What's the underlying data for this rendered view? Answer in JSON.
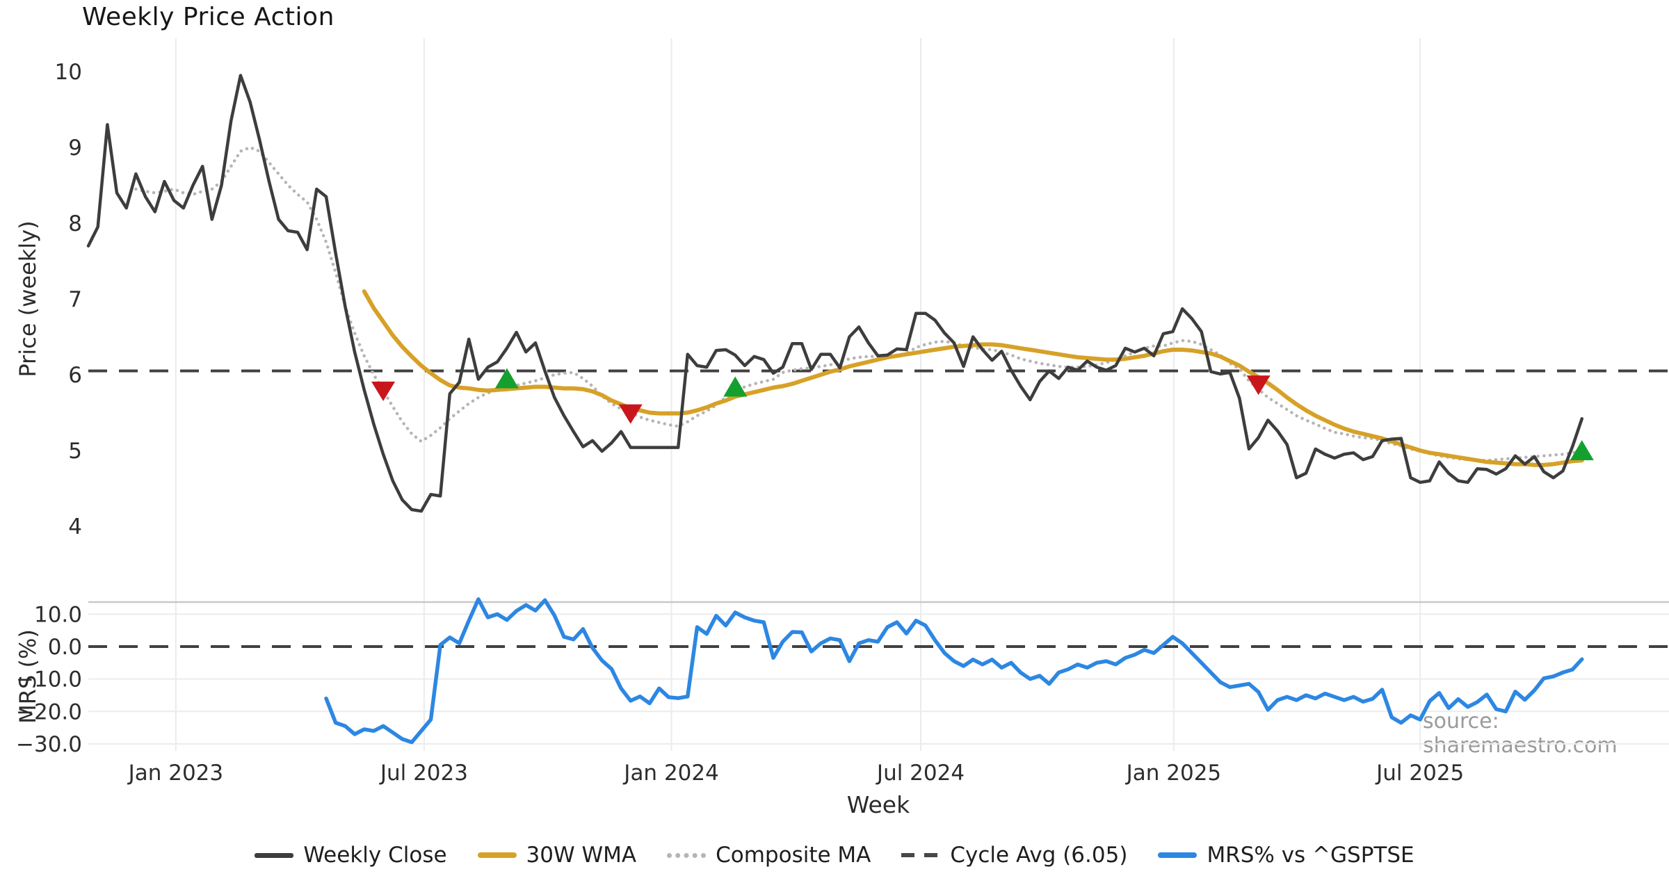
{
  "title": "Weekly Price Action",
  "source_note": "source: sharemaestro.com",
  "colors": {
    "close": "#3d3d3d",
    "wma": "#d7a128",
    "composite": "#b5b5b5",
    "dashed": "#404040",
    "mrs": "#2d87e2",
    "sell": "#c9161d",
    "buy": "#14a02e",
    "grid": "#e9ebef",
    "mrs_grid": "#ececec",
    "mrs_spine": "#c8c8c8",
    "tick_text": "#2d2d2d"
  },
  "chart_data": {
    "type": "line",
    "xlabel": "Week",
    "x_tick_labels": [
      "Jan 2023",
      "Jul 2023",
      "Jan 2024",
      "Jul 2024",
      "Jan 2025",
      "Jul 2025"
    ],
    "x_tick_weeks": [
      9.2,
      35.3,
      61.3,
      87.5,
      114.1,
      140.0
    ],
    "weeks_total": 158,
    "panels": [
      {
        "name": "price",
        "ylabel": "Price (weekly)",
        "yticks": [
          10,
          9,
          8,
          7,
          6,
          5,
          4
        ],
        "ytick_labels": [
          "10",
          "9",
          "8",
          "7",
          "6",
          "5",
          "4"
        ],
        "ylim": [
          3.85,
          10.45
        ]
      },
      {
        "name": "mrs",
        "ylabel": "MRS (%)",
        "yticks": [
          10,
          0,
          -10,
          -20,
          -30
        ],
        "ytick_labels": [
          "10.0",
          "0.0",
          "−10.0",
          "−20.0",
          "−30.0"
        ],
        "ylim": [
          -32,
          15.5
        ]
      }
    ],
    "legend": [
      "Weekly Close",
      "30W WMA",
      "Composite MA",
      "Cycle Avg (6.05)",
      "MRS% vs ^GSPTSE"
    ],
    "cycle_avg": 6.05,
    "series": [
      {
        "name": "Weekly Close",
        "panel": "price",
        "style": "solid",
        "color": "#3d3d3d",
        "width": 4.5,
        "start_week": 0,
        "values": [
          7.7,
          7.95,
          9.3,
          8.4,
          8.2,
          8.65,
          8.35,
          8.15,
          8.55,
          8.3,
          8.2,
          8.5,
          8.75,
          8.05,
          8.5,
          9.35,
          9.95,
          9.6,
          9.1,
          8.55,
          8.05,
          7.9,
          7.88,
          7.65,
          8.45,
          8.35,
          7.6,
          6.9,
          6.3,
          5.8,
          5.35,
          4.95,
          4.6,
          4.35,
          4.22,
          4.2,
          4.42,
          4.4,
          5.75,
          5.9,
          6.47,
          5.94,
          6.1,
          6.17,
          6.35,
          6.56,
          6.3,
          6.42,
          6.05,
          5.7,
          5.46,
          5.25,
          5.05,
          5.13,
          4.99,
          5.1,
          5.25,
          5.04,
          5.04,
          5.04,
          5.04,
          5.04,
          5.04,
          6.27,
          6.12,
          6.1,
          6.32,
          6.33,
          6.26,
          6.12,
          6.24,
          6.2,
          6.02,
          6.1,
          6.41,
          6.41,
          6.07,
          6.27,
          6.27,
          6.09,
          6.5,
          6.63,
          6.42,
          6.25,
          6.26,
          6.34,
          6.33,
          6.81,
          6.81,
          6.72,
          6.55,
          6.42,
          6.11,
          6.5,
          6.33,
          6.19,
          6.31,
          6.06,
          5.85,
          5.67,
          5.91,
          6.05,
          5.95,
          6.1,
          6.06,
          6.18,
          6.1,
          6.06,
          6.12,
          6.35,
          6.3,
          6.35,
          6.25,
          6.54,
          6.57,
          6.87,
          6.74,
          6.57,
          6.04,
          6.01,
          6.03,
          5.69,
          5.02,
          5.17,
          5.4,
          5.26,
          5.08,
          4.64,
          4.7,
          5.02,
          4.95,
          4.9,
          4.95,
          4.97,
          4.88,
          4.92,
          5.13,
          5.15,
          5.16,
          4.64,
          4.58,
          4.6,
          4.85,
          4.7,
          4.6,
          4.58,
          4.76,
          4.75,
          4.69,
          4.76,
          4.93,
          4.82,
          4.92,
          4.72,
          4.64,
          4.73,
          5.05,
          5.42
        ]
      },
      {
        "name": "30W WMA",
        "panel": "price",
        "style": "solid",
        "color": "#d7a128",
        "width": 6,
        "start_week": 29,
        "values": [
          7.1,
          6.88,
          6.7,
          6.52,
          6.37,
          6.24,
          6.12,
          6.02,
          5.93,
          5.86,
          5.83,
          5.82,
          5.8,
          5.79,
          5.8,
          5.81,
          5.82,
          5.83,
          5.84,
          5.84,
          5.83,
          5.82,
          5.82,
          5.81,
          5.78,
          5.73,
          5.66,
          5.61,
          5.56,
          5.53,
          5.5,
          5.49,
          5.49,
          5.49,
          5.5,
          5.53,
          5.57,
          5.62,
          5.66,
          5.71,
          5.74,
          5.77,
          5.8,
          5.83,
          5.85,
          5.88,
          5.92,
          5.96,
          6.0,
          6.04,
          6.07,
          6.11,
          6.14,
          6.17,
          6.2,
          6.23,
          6.25,
          6.27,
          6.29,
          6.31,
          6.33,
          6.35,
          6.37,
          6.38,
          6.39,
          6.4,
          6.4,
          6.39,
          6.37,
          6.35,
          6.33,
          6.31,
          6.29,
          6.27,
          6.25,
          6.23,
          6.22,
          6.21,
          6.2,
          6.2,
          6.21,
          6.23,
          6.25,
          6.28,
          6.31,
          6.33,
          6.33,
          6.32,
          6.3,
          6.28,
          6.24,
          6.18,
          6.12,
          6.04,
          5.97,
          5.89,
          5.8,
          5.7,
          5.61,
          5.53,
          5.46,
          5.4,
          5.34,
          5.29,
          5.25,
          5.22,
          5.19,
          5.16,
          5.12,
          5.08,
          5.04,
          5.0,
          4.97,
          4.95,
          4.93,
          4.91,
          4.89,
          4.87,
          4.85,
          4.84,
          4.83,
          4.82,
          4.82,
          4.81,
          4.81,
          4.82,
          4.84,
          4.86,
          4.87
        ]
      },
      {
        "name": "Composite MA",
        "panel": "price",
        "style": "dotted",
        "color": "#b5b5b5",
        "width": 4.5,
        "start_week": 5,
        "values": [
          8.45,
          8.42,
          8.4,
          8.42,
          8.45,
          8.4,
          8.38,
          8.42,
          8.45,
          8.55,
          8.75,
          8.95,
          9.0,
          8.95,
          8.8,
          8.65,
          8.5,
          8.38,
          8.28,
          8.05,
          7.75,
          7.35,
          6.9,
          6.55,
          6.25,
          6.0,
          5.79,
          5.58,
          5.38,
          5.22,
          5.12,
          5.2,
          5.3,
          5.42,
          5.52,
          5.62,
          5.7,
          5.76,
          5.8,
          5.83,
          5.86,
          5.89,
          5.92,
          5.96,
          6.0,
          6.02,
          6.03,
          5.95,
          5.85,
          5.72,
          5.62,
          5.55,
          5.5,
          5.44,
          5.4,
          5.37,
          5.34,
          5.32,
          5.38,
          5.46,
          5.52,
          5.6,
          5.7,
          5.78,
          5.84,
          5.88,
          5.91,
          5.94,
          6.03,
          6.06,
          6.08,
          6.09,
          6.11,
          6.13,
          6.17,
          6.21,
          6.23,
          6.24,
          6.24,
          6.24,
          6.26,
          6.28,
          6.36,
          6.4,
          6.43,
          6.44,
          6.42,
          6.38,
          6.36,
          6.34,
          6.33,
          6.3,
          6.26,
          6.21,
          6.18,
          6.15,
          6.13,
          6.11,
          6.1,
          6.1,
          6.11,
          6.13,
          6.16,
          6.2,
          6.25,
          6.3,
          6.35,
          6.38,
          6.38,
          6.42,
          6.45,
          6.44,
          6.4,
          6.33,
          6.26,
          6.15,
          6.08,
          5.92,
          5.81,
          5.7,
          5.62,
          5.54,
          5.46,
          5.4,
          5.35,
          5.29,
          5.24,
          5.22,
          5.19,
          5.17,
          5.16,
          5.13,
          5.09,
          5.06,
          5.02,
          4.99,
          4.96,
          4.93,
          4.91,
          4.89,
          4.88,
          4.87,
          4.87,
          4.88,
          4.89,
          4.9,
          4.91,
          4.92,
          4.93,
          4.94,
          4.95,
          4.97,
          5.0
        ]
      },
      {
        "name": "MRS% vs ^GSPTSE",
        "panel": "mrs",
        "style": "solid",
        "color": "#2d87e2",
        "width": 5.5,
        "start_week": 25,
        "values": [
          -16,
          -23.5,
          -24.5,
          -27,
          -25.5,
          -26,
          -24.5,
          -26.5,
          -28.5,
          -29.5,
          -26,
          -22.5,
          0.5,
          2.8,
          1.0,
          8.0,
          14.6,
          9.0,
          10.0,
          8.2,
          11.0,
          12.8,
          11.1,
          14.3,
          9.6,
          3.0,
          2.2,
          5.4,
          -0.4,
          -4.3,
          -6.9,
          -12.9,
          -16.7,
          -15.4,
          -17.5,
          -12.9,
          -15.6,
          -15.9,
          -15.4,
          6.0,
          3.9,
          9.5,
          6.5,
          10.5,
          9.0,
          8.0,
          7.5,
          -3.5,
          1.5,
          4.5,
          4.4,
          -1.5,
          1.0,
          2.5,
          2.0,
          -4.5,
          1.0,
          2.0,
          1.5,
          6.0,
          7.5,
          4.0,
          8.0,
          6.5,
          2.0,
          -2.0,
          -4.5,
          -6.0,
          -4.0,
          -5.5,
          -4.0,
          -6.5,
          -5.0,
          -8.0,
          -10.0,
          -9.0,
          -11.5,
          -8.0,
          -7.0,
          -5.5,
          -6.5,
          -5.0,
          -4.5,
          -5.5,
          -3.5,
          -2.5,
          -1.0,
          -2.0,
          0.5,
          3.0,
          1.0,
          -2.0,
          -5.0,
          -8.0,
          -11.0,
          -12.5,
          -12.0,
          -11.5,
          -14.0,
          -19.5,
          -16.5,
          -15.5,
          -16.5,
          -15.0,
          -16.0,
          -14.5,
          -15.5,
          -16.5,
          -15.5,
          -17.0,
          -16.1,
          -13.3,
          -21.8,
          -23.5,
          -21.2,
          -22.5,
          -16.8,
          -14.3,
          -19.0,
          -16.2,
          -18.6,
          -17.1,
          -14.8,
          -19.3,
          -20.0,
          -13.9,
          -16.4,
          -13.5,
          -9.8,
          -9.2,
          -8.0,
          -7.1,
          -3.9
        ]
      }
    ],
    "markers": {
      "sell": [
        {
          "week": 31,
          "value": 5.79
        },
        {
          "week": 57,
          "value": 5.49
        },
        {
          "week": 123,
          "value": 5.87
        }
      ],
      "buy": [
        {
          "week": 44,
          "value": 5.95
        },
        {
          "week": 68,
          "value": 5.84
        },
        {
          "week": 157,
          "value": 5.0
        }
      ]
    }
  }
}
